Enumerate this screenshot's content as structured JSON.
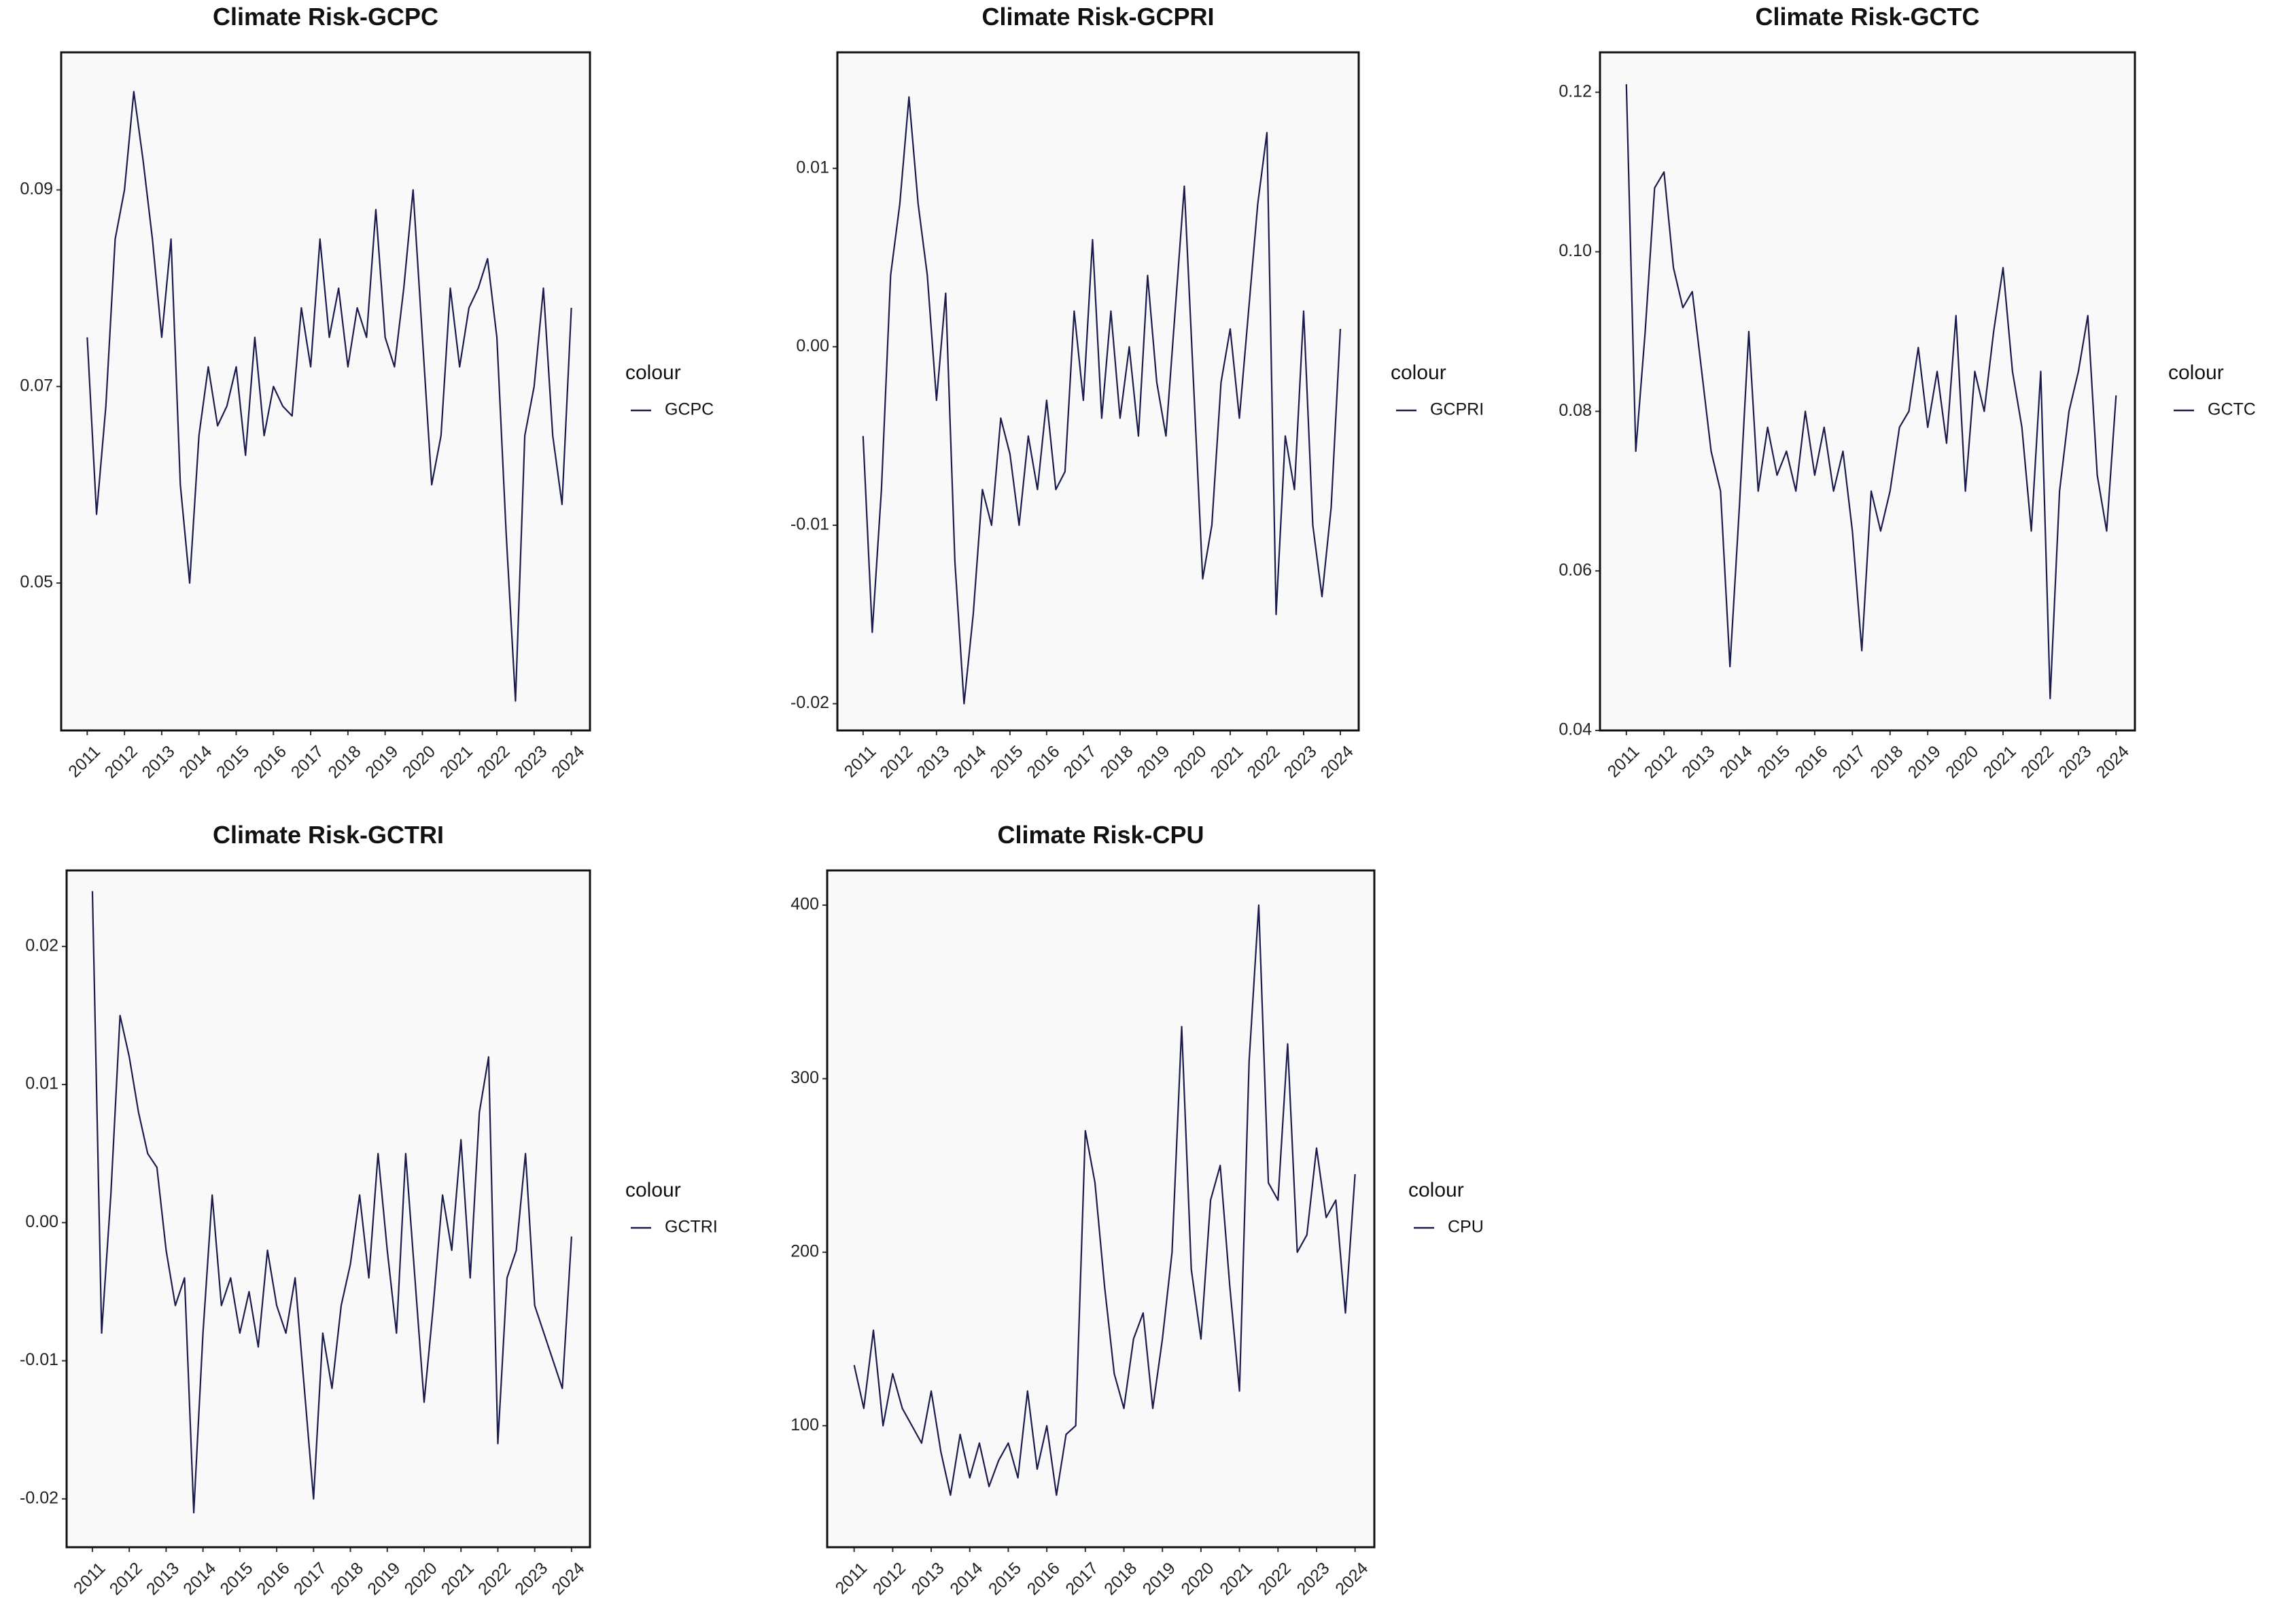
{
  "chart_data": [
    {
      "type": "line",
      "title": "Climate Risk-GCPC",
      "legend_title": "colour",
      "x": [
        2011,
        2011.25,
        2011.5,
        2011.75,
        2012,
        2012.25,
        2012.5,
        2012.75,
        2013,
        2013.25,
        2013.5,
        2013.75,
        2014,
        2014.25,
        2014.5,
        2014.75,
        2015,
        2015.25,
        2015.5,
        2015.75,
        2016,
        2016.25,
        2016.5,
        2016.75,
        2017,
        2017.25,
        2017.5,
        2017.75,
        2018,
        2018.25,
        2018.5,
        2018.75,
        2019,
        2019.25,
        2019.5,
        2019.75,
        2020,
        2020.25,
        2020.5,
        2020.75,
        2021,
        2021.25,
        2021.5,
        2021.75,
        2022,
        2022.25,
        2022.5,
        2022.75,
        2023,
        2023.25,
        2023.5,
        2023.75,
        2024
      ],
      "series": [
        {
          "name": "GCPC",
          "color": "#1b1b4d",
          "values": [
            0.075,
            0.057,
            0.068,
            0.085,
            0.09,
            0.1,
            0.093,
            0.085,
            0.075,
            0.085,
            0.06,
            0.05,
            0.065,
            0.072,
            0.066,
            0.068,
            0.072,
            0.063,
            0.075,
            0.065,
            0.07,
            0.068,
            0.067,
            0.078,
            0.072,
            0.085,
            0.075,
            0.08,
            0.072,
            0.078,
            0.075,
            0.088,
            0.075,
            0.072,
            0.08,
            0.09,
            0.075,
            0.06,
            0.065,
            0.08,
            0.072,
            0.078,
            0.08,
            0.083,
            0.075,
            0.055,
            0.038,
            0.065,
            0.07,
            0.08,
            0.065,
            0.058,
            0.078
          ]
        }
      ],
      "xlim": [
        2010.3,
        2024.5
      ],
      "xticks": [
        2011,
        2012,
        2013,
        2014,
        2015,
        2016,
        2017,
        2018,
        2019,
        2020,
        2021,
        2022,
        2023,
        2024
      ],
      "ylim": [
        0.035,
        0.104
      ],
      "yticks": [
        0.05,
        0.07,
        0.09
      ]
    },
    {
      "type": "line",
      "title": "Climate Risk-GCPRI",
      "legend_title": "colour",
      "x": [
        2011,
        2011.25,
        2011.5,
        2011.75,
        2012,
        2012.25,
        2012.5,
        2012.75,
        2013,
        2013.25,
        2013.5,
        2013.75,
        2014,
        2014.25,
        2014.5,
        2014.75,
        2015,
        2015.25,
        2015.5,
        2015.75,
        2016,
        2016.25,
        2016.5,
        2016.75,
        2017,
        2017.25,
        2017.5,
        2017.75,
        2018,
        2018.25,
        2018.5,
        2018.75,
        2019,
        2019.25,
        2019.5,
        2019.75,
        2020,
        2020.25,
        2020.5,
        2020.75,
        2021,
        2021.25,
        2021.5,
        2021.75,
        2022,
        2022.25,
        2022.5,
        2022.75,
        2023,
        2023.25,
        2023.5,
        2023.75,
        2024
      ],
      "series": [
        {
          "name": "GCPRI",
          "color": "#1b1b4d",
          "values": [
            -0.005,
            -0.016,
            -0.008,
            0.004,
            0.008,
            0.014,
            0.008,
            0.004,
            -0.003,
            0.003,
            -0.012,
            -0.02,
            -0.015,
            -0.008,
            -0.01,
            -0.004,
            -0.006,
            -0.01,
            -0.005,
            -0.008,
            -0.003,
            -0.008,
            -0.007,
            0.002,
            -0.003,
            0.006,
            -0.004,
            0.002,
            -0.004,
            0,
            -0.005,
            0.004,
            -0.002,
            -0.005,
            0.002,
            0.009,
            -0.002,
            -0.013,
            -0.01,
            -0.002,
            0.001,
            -0.004,
            0.002,
            0.008,
            0.012,
            -0.015,
            -0.005,
            -0.008,
            0.002,
            -0.01,
            -0.014,
            -0.009,
            0.001
          ]
        }
      ],
      "xlim": [
        2010.3,
        2024.5
      ],
      "xticks": [
        2011,
        2012,
        2013,
        2014,
        2015,
        2016,
        2017,
        2018,
        2019,
        2020,
        2021,
        2022,
        2023,
        2024
      ],
      "ylim": [
        -0.0215,
        0.0165
      ],
      "yticks": [
        -0.02,
        -0.01,
        {
          "value": 0,
          "label": "0.00"
        },
        0.01
      ]
    },
    {
      "type": "line",
      "title": "Climate Risk-GCTC",
      "legend_title": "colour",
      "x": [
        2011,
        2011.25,
        2011.5,
        2011.75,
        2012,
        2012.25,
        2012.5,
        2012.75,
        2013,
        2013.25,
        2013.5,
        2013.75,
        2014,
        2014.25,
        2014.5,
        2014.75,
        2015,
        2015.25,
        2015.5,
        2015.75,
        2016,
        2016.25,
        2016.5,
        2016.75,
        2017,
        2017.25,
        2017.5,
        2017.75,
        2018,
        2018.25,
        2018.5,
        2018.75,
        2019,
        2019.25,
        2019.5,
        2019.75,
        2020,
        2020.25,
        2020.5,
        2020.75,
        2021,
        2021.25,
        2021.5,
        2021.75,
        2022,
        2022.25,
        2022.5,
        2022.75,
        2023,
        2023.25,
        2023.5,
        2023.75,
        2024
      ],
      "series": [
        {
          "name": "GCTC",
          "color": "#1b1b4d",
          "values": [
            0.121,
            0.075,
            0.09,
            0.108,
            0.11,
            0.098,
            0.093,
            0.095,
            0.085,
            0.075,
            0.07,
            0.048,
            0.068,
            0.09,
            0.07,
            0.078,
            0.072,
            0.075,
            0.07,
            0.08,
            0.072,
            0.078,
            0.07,
            0.075,
            0.065,
            0.05,
            0.07,
            0.065,
            0.07,
            0.078,
            0.08,
            0.088,
            0.078,
            0.085,
            0.076,
            0.092,
            0.07,
            0.085,
            0.08,
            0.09,
            0.098,
            0.085,
            0.078,
            0.065,
            0.085,
            0.044,
            0.07,
            0.08,
            0.085,
            0.092,
            0.072,
            0.065,
            0.082
          ]
        }
      ],
      "xlim": [
        2010.3,
        2024.5
      ],
      "xticks": [
        2011,
        2012,
        2013,
        2014,
        2015,
        2016,
        2017,
        2018,
        2019,
        2020,
        2021,
        2022,
        2023,
        2024
      ],
      "ylim": [
        0.04,
        0.125
      ],
      "yticks": [
        0.04,
        0.06,
        0.08,
        {
          "value": 0.1,
          "label": "0.10"
        },
        0.12
      ]
    },
    {
      "type": "line",
      "title": "Climate Risk-GCTRI",
      "legend_title": "colour",
      "x": [
        2011,
        2011.25,
        2011.5,
        2011.75,
        2012,
        2012.25,
        2012.5,
        2012.75,
        2013,
        2013.25,
        2013.5,
        2013.75,
        2014,
        2014.25,
        2014.5,
        2014.75,
        2015,
        2015.25,
        2015.5,
        2015.75,
        2016,
        2016.25,
        2016.5,
        2016.75,
        2017,
        2017.25,
        2017.5,
        2017.75,
        2018,
        2018.25,
        2018.5,
        2018.75,
        2019,
        2019.25,
        2019.5,
        2019.75,
        2020,
        2020.25,
        2020.5,
        2020.75,
        2021,
        2021.25,
        2021.5,
        2021.75,
        2022,
        2022.25,
        2022.5,
        2022.75,
        2023,
        2023.25,
        2023.5,
        2023.75,
        2024
      ],
      "series": [
        {
          "name": "GCTRI",
          "color": "#1b1b4d",
          "values": [
            0.024,
            -0.008,
            0.002,
            0.015,
            0.012,
            0.008,
            0.005,
            0.004,
            -0.002,
            -0.006,
            -0.004,
            -0.021,
            -0.008,
            0.002,
            -0.006,
            -0.004,
            -0.008,
            -0.005,
            -0.009,
            -0.002,
            -0.006,
            -0.008,
            -0.004,
            -0.012,
            -0.02,
            -0.008,
            -0.012,
            -0.006,
            -0.003,
            0.002,
            -0.004,
            0.005,
            -0.002,
            -0.008,
            0.005,
            -0.004,
            -0.013,
            -0.006,
            0.002,
            -0.002,
            0.006,
            -0.004,
            0.008,
            0.012,
            -0.016,
            -0.004,
            -0.002,
            0.005,
            -0.006,
            -0.008,
            -0.01,
            -0.012,
            -0.001
          ]
        }
      ],
      "xlim": [
        2010.3,
        2024.5
      ],
      "xticks": [
        2011,
        2012,
        2013,
        2014,
        2015,
        2016,
        2017,
        2018,
        2019,
        2020,
        2021,
        2022,
        2023,
        2024
      ],
      "ylim": [
        -0.0235,
        0.0255
      ],
      "yticks": [
        -0.02,
        -0.01,
        {
          "value": 0,
          "label": "0.00"
        },
        0.01,
        0.02
      ]
    },
    {
      "type": "line",
      "title": "Climate Risk-CPU",
      "legend_title": "colour",
      "x": [
        2011,
        2011.25,
        2011.5,
        2011.75,
        2012,
        2012.25,
        2012.5,
        2012.75,
        2013,
        2013.25,
        2013.5,
        2013.75,
        2014,
        2014.25,
        2014.5,
        2014.75,
        2015,
        2015.25,
        2015.5,
        2015.75,
        2016,
        2016.25,
        2016.5,
        2016.75,
        2017,
        2017.25,
        2017.5,
        2017.75,
        2018,
        2018.25,
        2018.5,
        2018.75,
        2019,
        2019.25,
        2019.5,
        2019.75,
        2020,
        2020.25,
        2020.5,
        2020.75,
        2021,
        2021.25,
        2021.5,
        2021.75,
        2022,
        2022.25,
        2022.5,
        2022.75,
        2023,
        2023.25,
        2023.5,
        2023.75,
        2024
      ],
      "series": [
        {
          "name": "CPU",
          "color": "#1b1b4d",
          "values": [
            135,
            110,
            155,
            100,
            130,
            110,
            100,
            90,
            120,
            85,
            60,
            95,
            70,
            90,
            65,
            80,
            90,
            70,
            120,
            75,
            100,
            60,
            95,
            100,
            270,
            240,
            180,
            130,
            110,
            150,
            165,
            110,
            150,
            200,
            330,
            190,
            150,
            230,
            250,
            180,
            120,
            310,
            400,
            240,
            230,
            320,
            200,
            210,
            260,
            220,
            230,
            165,
            245
          ]
        }
      ],
      "xlim": [
        2010.3,
        2024.5
      ],
      "xticks": [
        2011,
        2012,
        2013,
        2014,
        2015,
        2016,
        2017,
        2018,
        2019,
        2020,
        2021,
        2022,
        2023,
        2024
      ],
      "ylim": [
        30,
        420
      ],
      "yticks": [
        100,
        200,
        300,
        400
      ]
    }
  ]
}
